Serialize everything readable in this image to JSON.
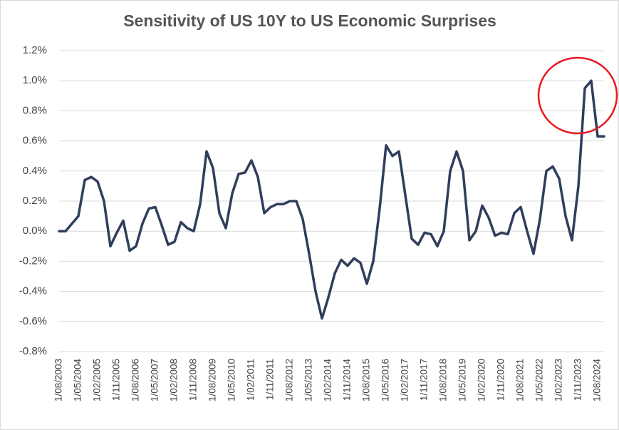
{
  "chart_data": {
    "type": "line",
    "title": "Sensitivity of US 10Y to US Economic Surprises",
    "categories": [
      "1/08/2003",
      null,
      null,
      "1/05/2004",
      null,
      null,
      "1/02/2005",
      null,
      null,
      "1/11/2005",
      null,
      null,
      "1/08/2006",
      null,
      null,
      "1/05/2007",
      null,
      null,
      "1/02/2008",
      null,
      null,
      "1/11/2008",
      null,
      null,
      "1/08/2009",
      null,
      null,
      "1/05/2010",
      null,
      null,
      "1/02/2011",
      null,
      null,
      "1/11/2011",
      null,
      null,
      "1/08/2012",
      null,
      null,
      "1/05/2013",
      null,
      null,
      "1/02/2014",
      null,
      null,
      "1/11/2014",
      null,
      null,
      "1/08/2015",
      null,
      null,
      "1/05/2016",
      null,
      null,
      "1/02/2017",
      null,
      null,
      "1/11/2017",
      null,
      null,
      "1/08/2018",
      null,
      null,
      "1/05/2019",
      null,
      null,
      "1/02/2020",
      null,
      null,
      "1/11/2020",
      null,
      null,
      "1/08/2021",
      null,
      null,
      "1/05/2022",
      null,
      null,
      "1/02/2023",
      null,
      null,
      "1/11/2023",
      null,
      null,
      "1/08/2024",
      null
    ],
    "values": [
      0.0,
      0.0,
      0.05,
      0.1,
      0.34,
      0.36,
      0.33,
      0.2,
      -0.1,
      -0.01,
      0.07,
      -0.13,
      -0.1,
      0.05,
      0.15,
      0.16,
      0.04,
      -0.09,
      -0.07,
      0.06,
      0.02,
      0.0,
      0.18,
      0.53,
      0.42,
      0.12,
      0.02,
      0.25,
      0.38,
      0.39,
      0.47,
      0.36,
      0.12,
      0.16,
      0.18,
      0.18,
      0.2,
      0.2,
      0.08,
      -0.15,
      -0.4,
      -0.58,
      -0.44,
      -0.28,
      -0.19,
      -0.23,
      -0.18,
      -0.21,
      -0.35,
      -0.2,
      0.15,
      0.57,
      0.5,
      0.53,
      0.24,
      -0.05,
      -0.09,
      -0.01,
      -0.02,
      -0.1,
      0.0,
      0.4,
      0.53,
      0.4,
      -0.06,
      0.0,
      0.17,
      0.09,
      -0.03,
      -0.01,
      -0.02,
      0.12,
      0.16,
      0.0,
      -0.15,
      0.08,
      0.4,
      0.43,
      0.35,
      0.1,
      -0.06,
      0.3,
      0.95,
      1.0,
      0.63,
      0.63
    ],
    "color": "#2f3e5b",
    "ylim": [
      -0.8,
      1.2
    ],
    "yticks": [
      {
        "value": -0.8,
        "label": "-0.8%"
      },
      {
        "value": -0.6,
        "label": "-0.6%"
      },
      {
        "value": -0.4,
        "label": "-0.4%"
      },
      {
        "value": -0.2,
        "label": "-0.2%"
      },
      {
        "value": 0,
        "label": "0.0%"
      },
      {
        "value": 0.2,
        "label": "0.2%"
      },
      {
        "value": 0.4,
        "label": "0.4%"
      },
      {
        "value": 0.6,
        "label": "0.6%"
      },
      {
        "value": 0.8,
        "label": "0.8%"
      },
      {
        "value": 1.0,
        "label": "1.0%"
      },
      {
        "value": 1.2,
        "label": "1.2%"
      }
    ],
    "grid": true
  }
}
